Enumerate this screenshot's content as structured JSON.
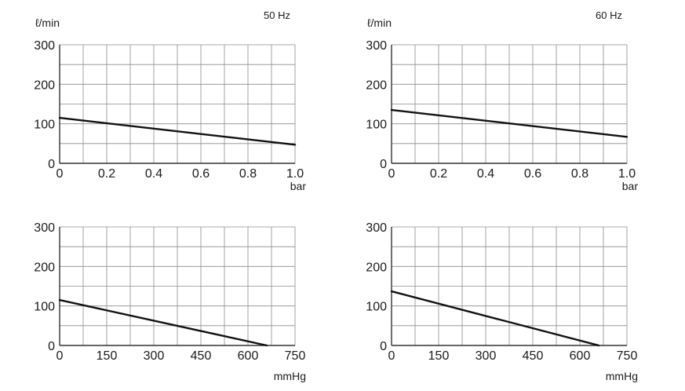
{
  "chart_data": [
    {
      "type": "line",
      "frequency_label": "50 Hz",
      "ylabel": "ℓ/min",
      "xlabel": "bar",
      "xlim": [
        0,
        1.0
      ],
      "ylim": [
        0,
        300
      ],
      "x_ticks": [
        0,
        0.2,
        0.4,
        0.6,
        0.8,
        1.0
      ],
      "x_tick_labels": [
        "0",
        "0.2",
        "0.4",
        "0.6",
        "0.8",
        "1.0"
      ],
      "y_ticks": [
        0,
        100,
        200,
        300
      ],
      "y_tick_labels": [
        "0",
        "100",
        "200",
        "300"
      ],
      "grid": true,
      "series": [
        {
          "x": [
            0,
            1.0
          ],
          "y": [
            115,
            47
          ]
        }
      ]
    },
    {
      "type": "line",
      "frequency_label": "60 Hz",
      "ylabel": "ℓ/min",
      "xlabel": "bar",
      "xlim": [
        0,
        1.0
      ],
      "ylim": [
        0,
        300
      ],
      "x_ticks": [
        0,
        0.2,
        0.4,
        0.6,
        0.8,
        1.0
      ],
      "x_tick_labels": [
        "0",
        "0.2",
        "0.4",
        "0.6",
        "0.8",
        "1.0"
      ],
      "y_ticks": [
        0,
        100,
        200,
        300
      ],
      "y_tick_labels": [
        "0",
        "100",
        "200",
        "300"
      ],
      "grid": true,
      "series": [
        {
          "x": [
            0,
            1.0
          ],
          "y": [
            135,
            67
          ]
        }
      ]
    },
    {
      "type": "line",
      "frequency_label": "",
      "ylabel": "",
      "xlabel": "mmHg",
      "xlim": [
        0,
        750
      ],
      "ylim": [
        0,
        300
      ],
      "x_ticks": [
        0,
        150,
        300,
        450,
        600,
        750
      ],
      "x_tick_labels": [
        "0",
        "150",
        "300",
        "450",
        "600",
        "750"
      ],
      "y_ticks": [
        0,
        100,
        200,
        300
      ],
      "y_tick_labels": [
        "0",
        "100",
        "200",
        "300"
      ],
      "grid": true,
      "series": [
        {
          "x": [
            0,
            660
          ],
          "y": [
            115,
            0
          ]
        }
      ]
    },
    {
      "type": "line",
      "frequency_label": "",
      "ylabel": "",
      "xlabel": "mmHg",
      "xlim": [
        0,
        750
      ],
      "ylim": [
        0,
        300
      ],
      "x_ticks": [
        0,
        150,
        300,
        450,
        600,
        750
      ],
      "x_tick_labels": [
        "0",
        "150",
        "300",
        "450",
        "600",
        "750"
      ],
      "y_ticks": [
        0,
        100,
        200,
        300
      ],
      "y_tick_labels": [
        "0",
        "100",
        "200",
        "300"
      ],
      "grid": true,
      "series": [
        {
          "x": [
            0,
            660
          ],
          "y": [
            137,
            0
          ]
        }
      ]
    }
  ]
}
